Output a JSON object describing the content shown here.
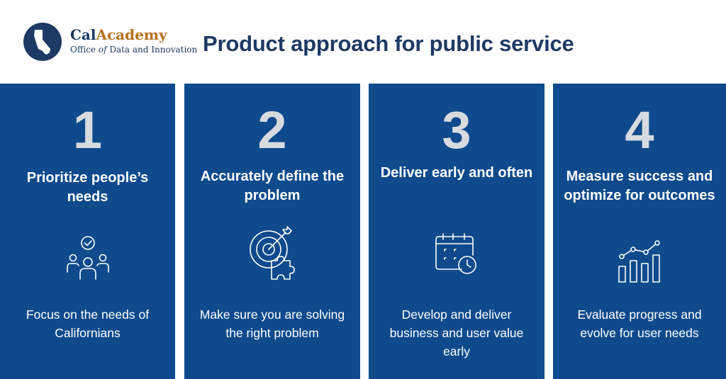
{
  "brand": {
    "name_part1": "Cal",
    "name_part2": "Academy",
    "subtitle_part1": "Office ",
    "subtitle_italic": "of",
    "subtitle_part2": " Data and Innovation"
  },
  "title": "Product approach for public service",
  "colors": {
    "navy": "#1d3a64",
    "panel_blue": "#0e4a8c",
    "gold": "#b5701c",
    "number_gray": "#d7dbe0"
  },
  "steps": [
    {
      "number": "1",
      "title": "Prioritize people’s needs",
      "icon": "people-check-icon",
      "description": "Focus on the needs of Californians"
    },
    {
      "number": "2",
      "title": "Accurately define the problem",
      "icon": "target-puzzle-icon",
      "description": "Make sure you are solving the right problem"
    },
    {
      "number": "3",
      "title": "Deliver early and often",
      "icon": "calendar-clock-icon",
      "description": "Develop and deliver business and user value early"
    },
    {
      "number": "4",
      "title": "Measure success and optimize for outcomes",
      "icon": "bar-chart-trend-icon",
      "description": "Evaluate progress and evolve for user needs"
    }
  ]
}
